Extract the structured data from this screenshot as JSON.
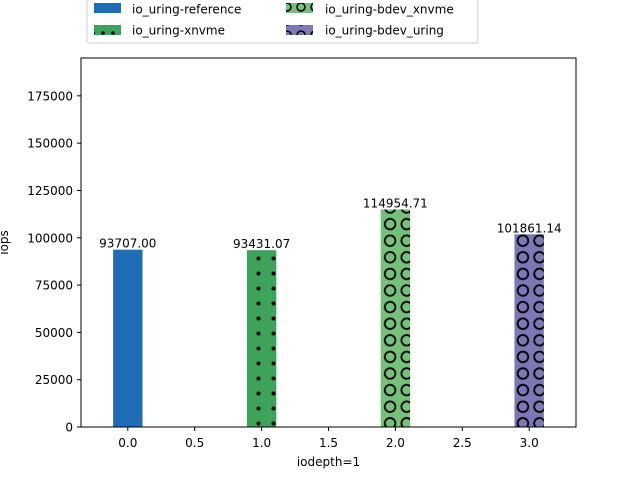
{
  "chart_data": {
    "type": "bar",
    "title": "",
    "xlabel": "iodepth=1",
    "ylabel": "iops",
    "xlim": [
      -0.35,
      3.35
    ],
    "ylim": [
      0,
      195000
    ],
    "xticks": [
      0.0,
      0.5,
      1.0,
      1.5,
      2.0,
      2.5,
      3.0
    ],
    "xtick_labels": [
      "0.0",
      "0.5",
      "1.0",
      "1.5",
      "2.0",
      "2.5",
      "3.0"
    ],
    "yticks": [
      0,
      25000,
      50000,
      75000,
      100000,
      125000,
      150000,
      175000
    ],
    "ytick_labels": [
      "0",
      "25000",
      "50000",
      "75000",
      "100000",
      "125000",
      "150000",
      "175000"
    ],
    "grid": false,
    "legend_position": "top-center-outside",
    "bar_width": 0.22,
    "series": [
      {
        "name": "io_uring-reference",
        "x": 0,
        "value": 93707.0,
        "label": "93707.00",
        "color": "#1f6eb5",
        "pattern": "none"
      },
      {
        "name": "io_uring-xnvme",
        "x": 1,
        "value": 93431.07,
        "label": "93431.07",
        "color": "#3da35a",
        "pattern": "dots"
      },
      {
        "name": "io_uring-bdev_xnvme",
        "x": 2,
        "value": 114954.71,
        "label": "114954.71",
        "color": "#76c17a",
        "pattern": "circles"
      },
      {
        "name": "io_uring-bdev_uring",
        "x": 3,
        "value": 101861.14,
        "label": "101861.14",
        "color": "#7a78b5",
        "pattern": "circles"
      }
    ]
  }
}
